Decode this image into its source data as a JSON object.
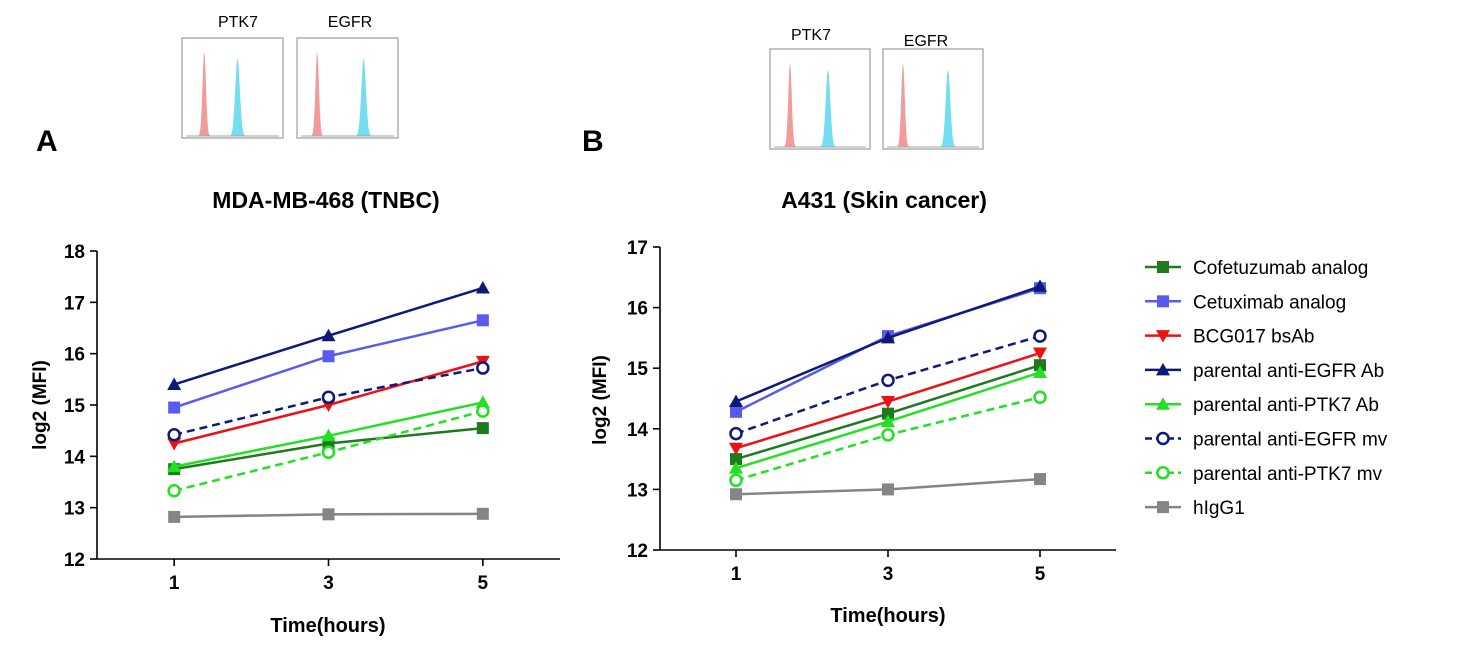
{
  "chart_data": [
    {
      "panel_letter": "A",
      "type": "line",
      "title": "MDA-MB-468 (TNBC)",
      "xlabel": "Time(hours)",
      "ylabel": "log2 (MFI)",
      "x": [
        1,
        3,
        5
      ],
      "x_tick_labels": [
        "1",
        "3",
        "5"
      ],
      "xlim": [
        0,
        6
      ],
      "ylim": [
        12,
        18
      ],
      "y_ticks": [
        12,
        13,
        14,
        15,
        16,
        17,
        18
      ],
      "grid": false,
      "inset_labels": [
        "PTK7",
        "EGFR"
      ],
      "series": [
        {
          "name": "Cofetuzumab analog",
          "values": [
            13.75,
            14.25,
            14.55
          ]
        },
        {
          "name": "Cetuximab analog",
          "values": [
            14.95,
            15.95,
            16.65
          ]
        },
        {
          "name": "BCG017 bsAb",
          "values": [
            14.25,
            15.0,
            15.85
          ]
        },
        {
          "name": "parental anti-EGFR Ab",
          "values": [
            15.4,
            16.35,
            17.28
          ]
        },
        {
          "name": "parental anti-PTK7 Ab",
          "values": [
            13.8,
            14.4,
            15.05
          ]
        },
        {
          "name": "parental anti-EGFR mv",
          "values": [
            14.42,
            15.15,
            15.72
          ]
        },
        {
          "name": "parental anti-PTK7 mv",
          "values": [
            13.33,
            14.08,
            14.88
          ]
        },
        {
          "name": "hIgG1",
          "values": [
            12.82,
            12.87,
            12.88
          ]
        }
      ]
    },
    {
      "panel_letter": "B",
      "type": "line",
      "title": "A431 (Skin cancer)",
      "xlabel": "Time(hours)",
      "ylabel": "log2 (MFI)",
      "x": [
        1,
        3,
        5
      ],
      "x_tick_labels": [
        "1",
        "3",
        "5"
      ],
      "xlim": [
        0,
        6
      ],
      "ylim": [
        12,
        17
      ],
      "y_ticks": [
        12,
        13,
        14,
        15,
        16,
        17
      ],
      "grid": false,
      "inset_labels": [
        "PTK7",
        "EGFR"
      ],
      "series": [
        {
          "name": "Cofetuzumab analog",
          "values": [
            13.5,
            14.25,
            15.05
          ]
        },
        {
          "name": "Cetuximab analog",
          "values": [
            14.28,
            15.53,
            16.32
          ]
        },
        {
          "name": "BCG017 bsAb",
          "values": [
            13.68,
            14.45,
            15.25
          ]
        },
        {
          "name": "parental anti-EGFR Ab",
          "values": [
            14.45,
            15.5,
            16.35
          ]
        },
        {
          "name": "parental anti-PTK7 Ab",
          "values": [
            13.35,
            14.12,
            14.93
          ]
        },
        {
          "name": "parental anti-EGFR mv",
          "values": [
            13.92,
            14.8,
            15.53
          ]
        },
        {
          "name": "parental anti-PTK7 mv",
          "values": [
            13.15,
            13.9,
            14.52
          ]
        },
        {
          "name": "hIgG1",
          "values": [
            12.92,
            13.0,
            13.17
          ]
        }
      ]
    }
  ],
  "legend": {
    "placement": "right",
    "entries": [
      {
        "name": "Cofetuzumab analog",
        "color": "#1f7a1f",
        "marker": "square",
        "dashed": false
      },
      {
        "name": "Cetuximab analog",
        "color": "#5a5aef",
        "marker": "square",
        "dashed": false
      },
      {
        "name": "BCG017 bsAb",
        "color": "#ee1111",
        "marker": "triangle-down",
        "dashed": false
      },
      {
        "name": "parental anti-EGFR Ab",
        "color": "#0d1a7a",
        "marker": "triangle-up",
        "dashed": false
      },
      {
        "name": "parental anti-PTK7 Ab",
        "color": "#22e022",
        "marker": "triangle-up",
        "dashed": false
      },
      {
        "name": "parental anti-EGFR mv",
        "color": "#0d1a7a",
        "marker": "circle-open",
        "dashed": true
      },
      {
        "name": "parental anti-PTK7 mv",
        "color": "#22e022",
        "marker": "circle-open",
        "dashed": true
      },
      {
        "name": "hIgG1",
        "color": "#858585",
        "marker": "square",
        "dashed": false
      }
    ]
  },
  "inset_colors": {
    "isotype": "#f08a8a",
    "stained": "#5ad8ec"
  }
}
